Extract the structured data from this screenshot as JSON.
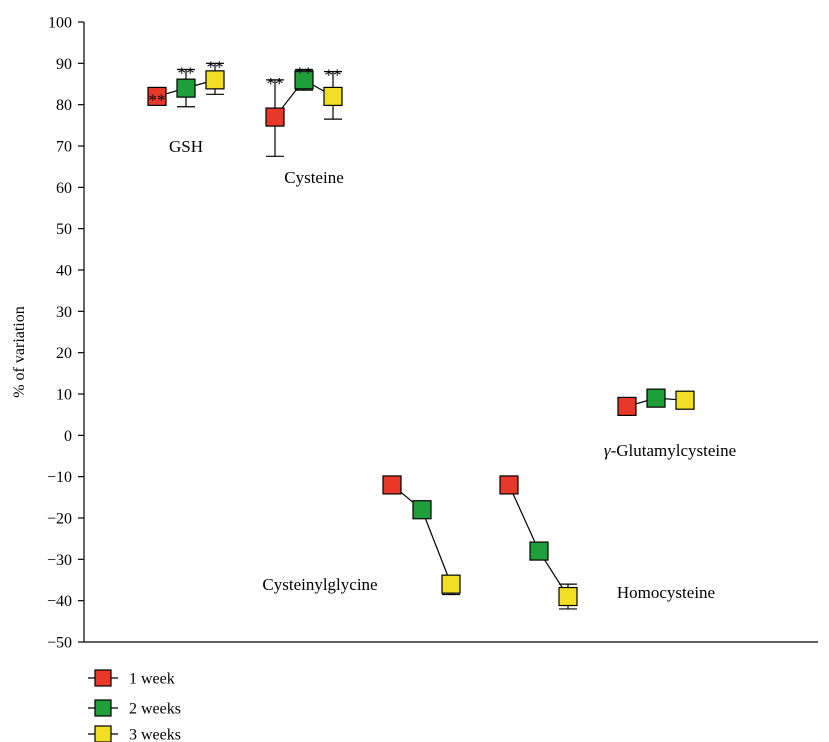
{
  "chart_data": {
    "type": "scatter",
    "ylabel": "% of variation",
    "xlabel": "",
    "ylim": [
      -50,
      100
    ],
    "yticks": [
      "100",
      "90",
      "80",
      "70",
      "60",
      "50",
      "40",
      "30",
      "20",
      "10",
      "0",
      "−10",
      "−20",
      "−30",
      "−40",
      "−50"
    ],
    "grid": false,
    "legend_position": "bottom-left",
    "series": [
      {
        "name": "1 week",
        "color": "#e8382a"
      },
      {
        "name": "2 weeks",
        "color": "#1f9e3c"
      },
      {
        "name": "3 weeks",
        "color": "#f2df25"
      }
    ],
    "groups": [
      {
        "label": "GSH",
        "points": [
          {
            "y": 82,
            "err_low": 82,
            "err_high": 82,
            "sig": "**"
          },
          {
            "y": 84,
            "err_low": 79.5,
            "err_high": 88.5,
            "sig": "**"
          },
          {
            "y": 86,
            "err_low": 82.5,
            "err_high": 90,
            "sig": "**"
          }
        ]
      },
      {
        "label": "Cysteine",
        "points": [
          {
            "y": 77,
            "err_low": 67.5,
            "err_high": 86,
            "sig": "**"
          },
          {
            "y": 86,
            "err_low": 83.5,
            "err_high": 88.5,
            "sig": "**"
          },
          {
            "y": 82,
            "err_low": 76.5,
            "err_high": 88,
            "sig": "**"
          }
        ]
      },
      {
        "label": "Cysteinylglycine",
        "points": [
          {
            "y": -12,
            "err_low": -12,
            "err_high": -12,
            "sig": ""
          },
          {
            "y": -18,
            "err_low": -18,
            "err_high": -18,
            "sig": ""
          },
          {
            "y": -36,
            "err_low": -38.5,
            "err_high": -34,
            "sig": ""
          }
        ]
      },
      {
        "label": "Homocysteine",
        "points": [
          {
            "y": -12,
            "err_low": -12,
            "err_high": -12,
            "sig": ""
          },
          {
            "y": -28,
            "err_low": -28,
            "err_high": -28,
            "sig": ""
          },
          {
            "y": -39,
            "err_low": -42,
            "err_high": -36,
            "sig": ""
          }
        ]
      },
      {
        "label": "γ-Glutamylcysteine",
        "points": [
          {
            "y": 7,
            "err_low": 7,
            "err_high": 7,
            "sig": ""
          },
          {
            "y": 9,
            "err_low": 9,
            "err_high": 9,
            "sig": ""
          },
          {
            "y": 8.5,
            "err_low": 8.5,
            "err_high": 8.5,
            "sig": ""
          }
        ]
      }
    ]
  }
}
